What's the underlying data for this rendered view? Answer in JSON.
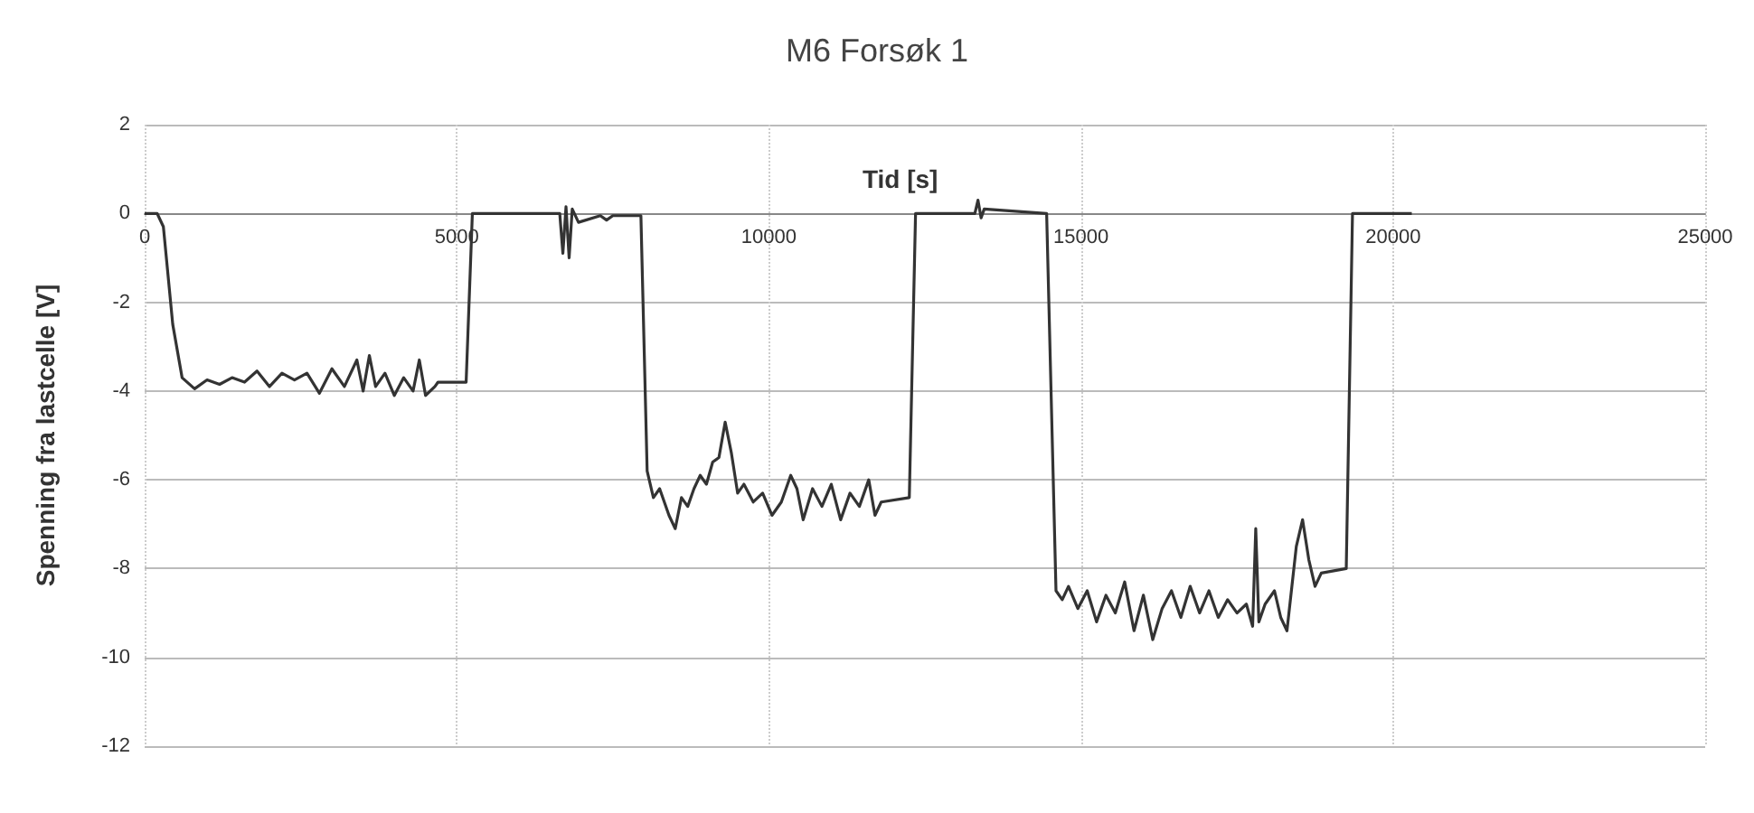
{
  "chart_data": {
    "type": "line",
    "title": "M6 Forsøk 1",
    "xlabel": "Tid [s]",
    "ylabel": "Spenning fra lastcelle [V]",
    "xlim": [
      0,
      25000
    ],
    "xticks": [
      0,
      5000,
      10000,
      15000,
      20000,
      25000
    ],
    "ylim": [
      -12,
      2
    ],
    "yticks": [
      -12,
      -10,
      -8,
      -6,
      -4,
      -2,
      0,
      2
    ],
    "grid": true,
    "marker": "none",
    "line_style": "solid",
    "series": [
      {
        "color": "#333333",
        "x": [
          0,
          200,
          300,
          450,
          600,
          800,
          1000,
          1200,
          1400,
          1600,
          1800,
          2000,
          2200,
          2400,
          2600,
          2800,
          3000,
          3200,
          3400,
          3500,
          3600,
          3700,
          3850,
          4000,
          4150,
          4300,
          4400,
          4500,
          4650,
          4700,
          5150,
          5250,
          6650,
          6700,
          6750,
          6800,
          6850,
          6950,
          7300,
          7400,
          7500,
          7950,
          8050,
          8150,
          8250,
          8400,
          8500,
          8600,
          8700,
          8800,
          8900,
          9000,
          9100,
          9200,
          9300,
          9400,
          9500,
          9600,
          9750,
          9900,
          10050,
          10200,
          10350,
          10450,
          10550,
          10700,
          10850,
          11000,
          11150,
          11300,
          11450,
          11600,
          11700,
          11800,
          12250,
          12350,
          13300,
          13350,
          13400,
          13450,
          14450,
          14600,
          14700,
          14800,
          14950,
          15100,
          15250,
          15400,
          15550,
          15700,
          15850,
          16000,
          16150,
          16300,
          16450,
          16600,
          16750,
          16900,
          17050,
          17200,
          17350,
          17500,
          17650,
          17750,
          17800,
          17850,
          17950,
          18100,
          18200,
          18300,
          18450,
          18550,
          18650,
          18750,
          18850,
          19250,
          19350,
          20300
        ],
        "values": [
          0,
          0,
          -0.3,
          -2.5,
          -3.7,
          -3.95,
          -3.75,
          -3.85,
          -3.7,
          -3.8,
          -3.55,
          -3.9,
          -3.6,
          -3.75,
          -3.6,
          -4.05,
          -3.5,
          -3.9,
          -3.3,
          -4.0,
          -3.2,
          -3.9,
          -3.6,
          -4.1,
          -3.7,
          -4.0,
          -3.3,
          -4.1,
          -3.9,
          -3.8,
          -3.8,
          0,
          0,
          -0.9,
          0.15,
          -1.0,
          0.1,
          -0.2,
          -0.05,
          -0.15,
          -0.05,
          -0.05,
          -5.8,
          -6.4,
          -6.2,
          -6.8,
          -7.1,
          -6.4,
          -6.6,
          -6.2,
          -5.9,
          -6.1,
          -5.6,
          -5.5,
          -4.7,
          -5.4,
          -6.3,
          -6.1,
          -6.5,
          -6.3,
          -6.8,
          -6.5,
          -5.9,
          -6.2,
          -6.9,
          -6.2,
          -6.6,
          -6.1,
          -6.9,
          -6.3,
          -6.6,
          -6.0,
          -6.8,
          -6.5,
          -6.4,
          0,
          0,
          0.3,
          -0.1,
          0.1,
          0,
          -8.5,
          -8.7,
          -8.4,
          -8.9,
          -8.5,
          -9.2,
          -8.6,
          -9.0,
          -8.3,
          -9.4,
          -8.6,
          -9.6,
          -8.9,
          -8.5,
          -9.1,
          -8.4,
          -9.0,
          -8.5,
          -9.1,
          -8.7,
          -9.0,
          -8.8,
          -9.3,
          -7.1,
          -9.2,
          -8.8,
          -8.5,
          -9.1,
          -9.4,
          -7.5,
          -6.9,
          -7.8,
          -8.4,
          -8.1,
          -8.0,
          0,
          0
        ]
      }
    ]
  }
}
